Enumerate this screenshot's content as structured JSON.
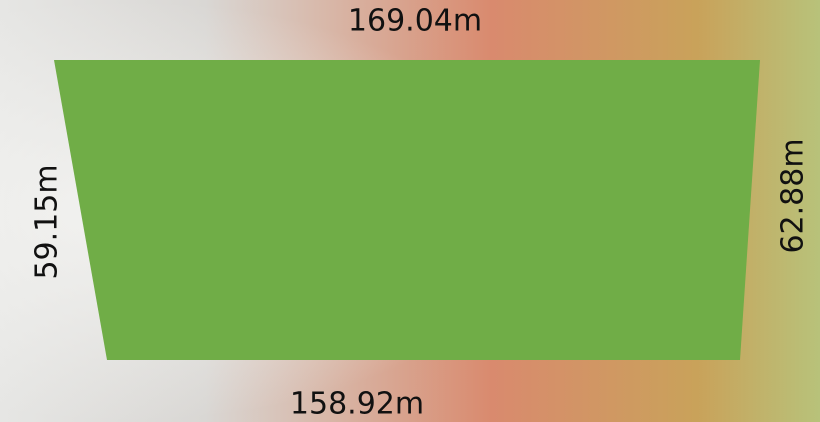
{
  "sides": {
    "top": "169.04m",
    "bottom": "158.92m",
    "left": "59.15m",
    "right": "62.88m"
  }
}
